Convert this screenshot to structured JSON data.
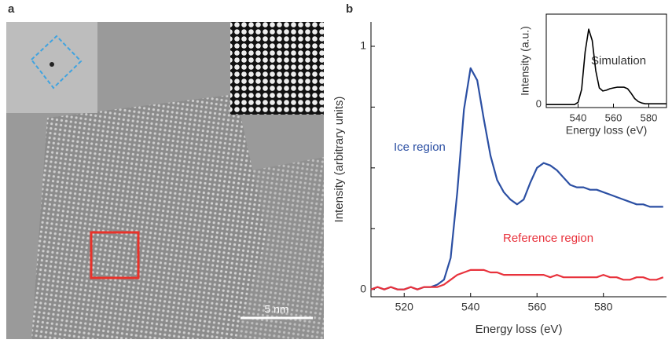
{
  "panel_a": {
    "label": "a",
    "scale_bar": "5 nm"
  },
  "chart_data": [
    {
      "type": "line",
      "panel_label": "b",
      "xlabel": "Energy loss (eV)",
      "ylabel": "Intensity (arbitrary units)",
      "xlim": [
        510,
        599
      ],
      "xticks": [
        520,
        540,
        560,
        580
      ],
      "ylim": [
        -0.03,
        1.1
      ],
      "yticks": [
        0,
        1
      ],
      "yminor": [
        0.25,
        0.5,
        0.75
      ],
      "x": [
        510,
        512,
        514,
        516,
        518,
        520,
        522,
        524,
        526,
        528,
        530,
        532,
        534,
        536,
        538,
        540,
        542,
        544,
        546,
        548,
        550,
        552,
        554,
        556,
        558,
        560,
        562,
        564,
        566,
        568,
        570,
        572,
        574,
        576,
        578,
        580,
        582,
        584,
        586,
        588,
        590,
        592,
        594,
        596,
        598
      ],
      "series": [
        {
          "name": "Ice region",
          "color": "#2b4fa3",
          "values": [
            0,
            0.01,
            0,
            0.01,
            0,
            0,
            0.01,
            0,
            0.01,
            0.01,
            0.02,
            0.04,
            0.13,
            0.4,
            0.74,
            0.91,
            0.86,
            0.7,
            0.55,
            0.45,
            0.4,
            0.37,
            0.35,
            0.37,
            0.44,
            0.5,
            0.52,
            0.51,
            0.49,
            0.46,
            0.43,
            0.42,
            0.42,
            0.41,
            0.41,
            0.4,
            0.39,
            0.38,
            0.37,
            0.36,
            0.35,
            0.35,
            0.34,
            0.34,
            0.34
          ]
        },
        {
          "name": "Reference region",
          "color": "#e8323c",
          "values": [
            0,
            0.01,
            0,
            0.01,
            0,
            0,
            0.01,
            0,
            0.01,
            0.01,
            0.01,
            0.02,
            0.04,
            0.06,
            0.07,
            0.08,
            0.08,
            0.08,
            0.07,
            0.07,
            0.06,
            0.06,
            0.06,
            0.06,
            0.06,
            0.06,
            0.06,
            0.05,
            0.06,
            0.05,
            0.05,
            0.05,
            0.05,
            0.05,
            0.05,
            0.06,
            0.05,
            0.05,
            0.04,
            0.04,
            0.05,
            0.05,
            0.04,
            0.04,
            0.05
          ]
        }
      ]
    },
    {
      "type": "line",
      "title": "Simulation",
      "xlabel": "Energy loss (eV)",
      "ylabel": "Intensity (a.u.)",
      "xlim": [
        522,
        590
      ],
      "xticks": [
        540,
        560,
        580
      ],
      "ylim": [
        -0.04,
        1.2
      ],
      "yticks": [
        0
      ],
      "x": [
        522,
        524,
        526,
        528,
        530,
        532,
        534,
        536,
        538,
        540,
        542,
        544,
        546,
        548,
        550,
        552,
        554,
        556,
        558,
        560,
        562,
        564,
        566,
        568,
        570,
        572,
        574,
        576,
        578,
        580,
        582,
        584,
        586,
        588,
        590
      ],
      "series": [
        {
          "color": "#000000",
          "values": [
            0,
            0,
            0,
            0,
            0,
            0,
            0,
            0,
            0,
            0.03,
            0.2,
            0.7,
            1,
            0.85,
            0.45,
            0.22,
            0.18,
            0.19,
            0.21,
            0.22,
            0.23,
            0.23,
            0.23,
            0.21,
            0.15,
            0.08,
            0.04,
            0.02,
            0.01,
            0.01,
            0.01,
            0.01,
            0.01,
            0.01,
            0.01
          ]
        }
      ]
    }
  ]
}
